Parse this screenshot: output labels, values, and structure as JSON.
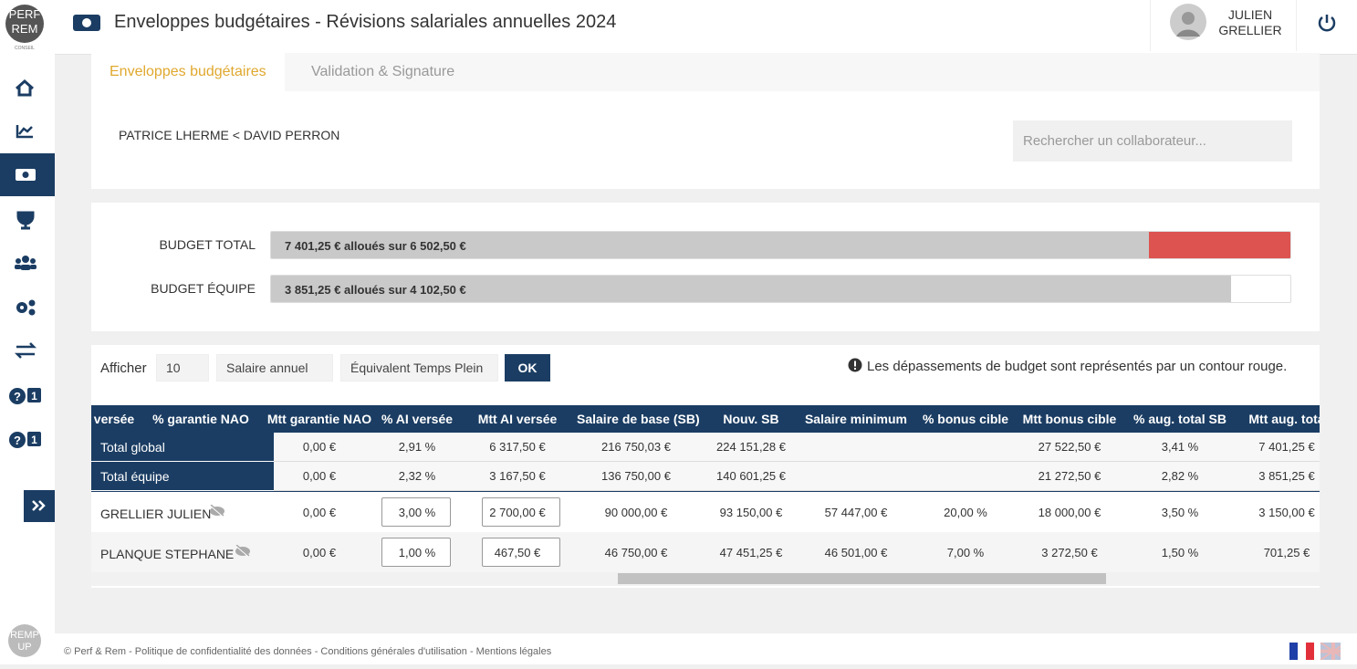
{
  "logo": {
    "top": "PERF",
    "middle": "REM",
    "bottom": "CONSEIL",
    "footer_top": "REMP",
    "footer_bottom": "UP"
  },
  "header": {
    "title": "Enveloppes budgétaires - Révisions salariales annuelles 2024",
    "user_first": "JULIEN",
    "user_last": "GRELLIER"
  },
  "sidebar": {
    "badges": [
      "1",
      "1"
    ]
  },
  "tabs": [
    "Enveloppes budgétaires",
    "Validation & Signature"
  ],
  "breadcrumb": "PATRICE LHERME < DAVID PERRON",
  "search_placeholder": "Rechercher un collaborateur...",
  "budgets": [
    {
      "label": "BUDGET TOTAL",
      "text": "7 401,25 € alloués sur 6 502,50 €"
    },
    {
      "label": "BUDGET ÉQUIPE",
      "text": "3 851,25 € alloués sur 4 102,50 €"
    }
  ],
  "filters": {
    "show_label": "Afficher",
    "page_size": "10",
    "salary": "Salaire annuel",
    "etp": "Équivalent Temps Plein",
    "ok": "OK",
    "notice": "Les dépassements de budget sont représentés par un contour rouge."
  },
  "table": {
    "columns": [
      "versée",
      "% garantie NAO",
      "Mtt garantie NAO",
      "% AI versée",
      "Mtt AI versée",
      "Salaire de base (SB)",
      "Nouv. SB",
      "Salaire minimum",
      "% bonus cible",
      "Mtt bonus cible",
      "% aug. total SB",
      "Mtt aug. tota"
    ],
    "totals": [
      {
        "name": "Total global",
        "cells": [
          "0,00 €",
          "2,91 %",
          "6 317,50 €",
          "216 750,03 €",
          "224 151,28 €",
          null,
          null,
          "27 522,50 €",
          "3,41 %",
          "7 401,25 €"
        ]
      },
      {
        "name": "Total équipe",
        "cells": [
          "0,00 €",
          "2,32 %",
          "3 167,50 €",
          "136 750,00 €",
          "140 601,25 €",
          null,
          null,
          "21 272,50 €",
          "2,82 %",
          "3 851,25 €"
        ]
      }
    ],
    "rows": [
      {
        "name": "GRELLIER JULIEN",
        "cells": [
          "0,00 €",
          "3,00 %",
          "2 700,00 €",
          "90 000,00 €",
          "93 150,00 €",
          "57 447,00 €",
          "20,00 %",
          "18 000,00 €",
          "3,50 %",
          "3 150,00 €"
        ]
      },
      {
        "name": "PLANQUE STEPHANE",
        "cells": [
          "0,00 €",
          "1,00 %",
          "467,50 €",
          "46 750,00 €",
          "47 451,25 €",
          "46 501,00 €",
          "7,00 %",
          "3 272,50 €",
          "1,50 %",
          "701,25 €"
        ]
      }
    ]
  },
  "footer": "© Perf & Rem - Politique de confidentialité des données - Conditions générales d'utilisation - Mentions légales"
}
